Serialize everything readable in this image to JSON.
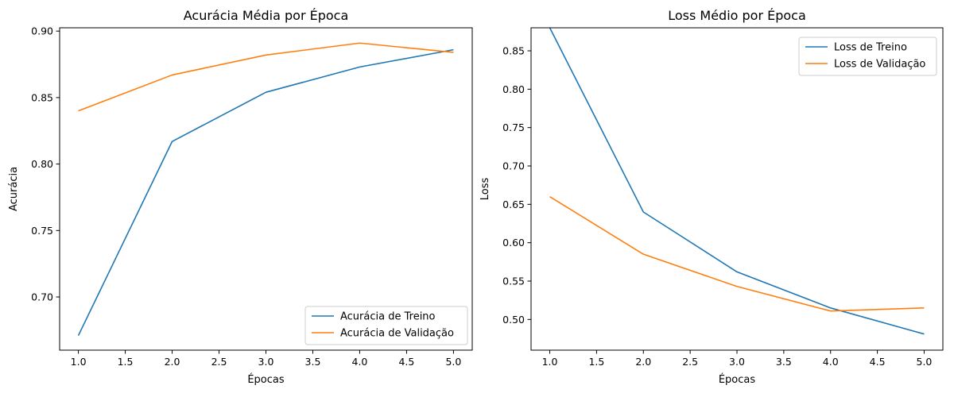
{
  "chart_data": [
    {
      "type": "line",
      "title": "Acurácia Média por Época",
      "xlabel": "Épocas",
      "ylabel": "Acurácia",
      "x": [
        1.0,
        2.0,
        3.0,
        4.0,
        5.0
      ],
      "xlim": [
        0.8,
        5.2
      ],
      "ylim": [
        0.66,
        0.9025
      ],
      "xticks": [
        "1.0",
        "1.5",
        "2.0",
        "2.5",
        "3.0",
        "3.5",
        "4.0",
        "4.5",
        "5.0"
      ],
      "yticks": [
        "0.70",
        "0.75",
        "0.80",
        "0.85",
        "0.90"
      ],
      "legend_position": "lower-right",
      "grid": false,
      "series": [
        {
          "name": "Acurácia de Treino",
          "values": [
            0.671,
            0.817,
            0.854,
            0.873,
            0.886
          ],
          "color": "#1f77b4"
        },
        {
          "name": "Acurácia de Validação",
          "values": [
            0.84,
            0.867,
            0.882,
            0.891,
            0.884
          ],
          "color": "#ff7f0e"
        }
      ]
    },
    {
      "type": "line",
      "title": "Loss Médio por Época",
      "xlabel": "Épocas",
      "ylabel": "Loss",
      "x": [
        1.0,
        2.0,
        3.0,
        4.0,
        5.0
      ],
      "xlim": [
        0.8,
        5.2
      ],
      "ylim": [
        0.46,
        0.88
      ],
      "xticks": [
        "1.0",
        "1.5",
        "2.0",
        "2.5",
        "3.0",
        "3.5",
        "4.0",
        "4.5",
        "5.0"
      ],
      "yticks": [
        "0.50",
        "0.55",
        "0.60",
        "0.65",
        "0.70",
        "0.75",
        "0.80",
        "0.85"
      ],
      "legend_position": "upper-right",
      "grid": false,
      "series": [
        {
          "name": "Loss de Treino",
          "values": [
            0.88,
            0.64,
            0.562,
            0.515,
            0.481
          ],
          "color": "#1f77b4"
        },
        {
          "name": "Loss de Validação",
          "values": [
            0.66,
            0.585,
            0.543,
            0.511,
            0.515
          ],
          "color": "#ff7f0e"
        }
      ]
    }
  ]
}
